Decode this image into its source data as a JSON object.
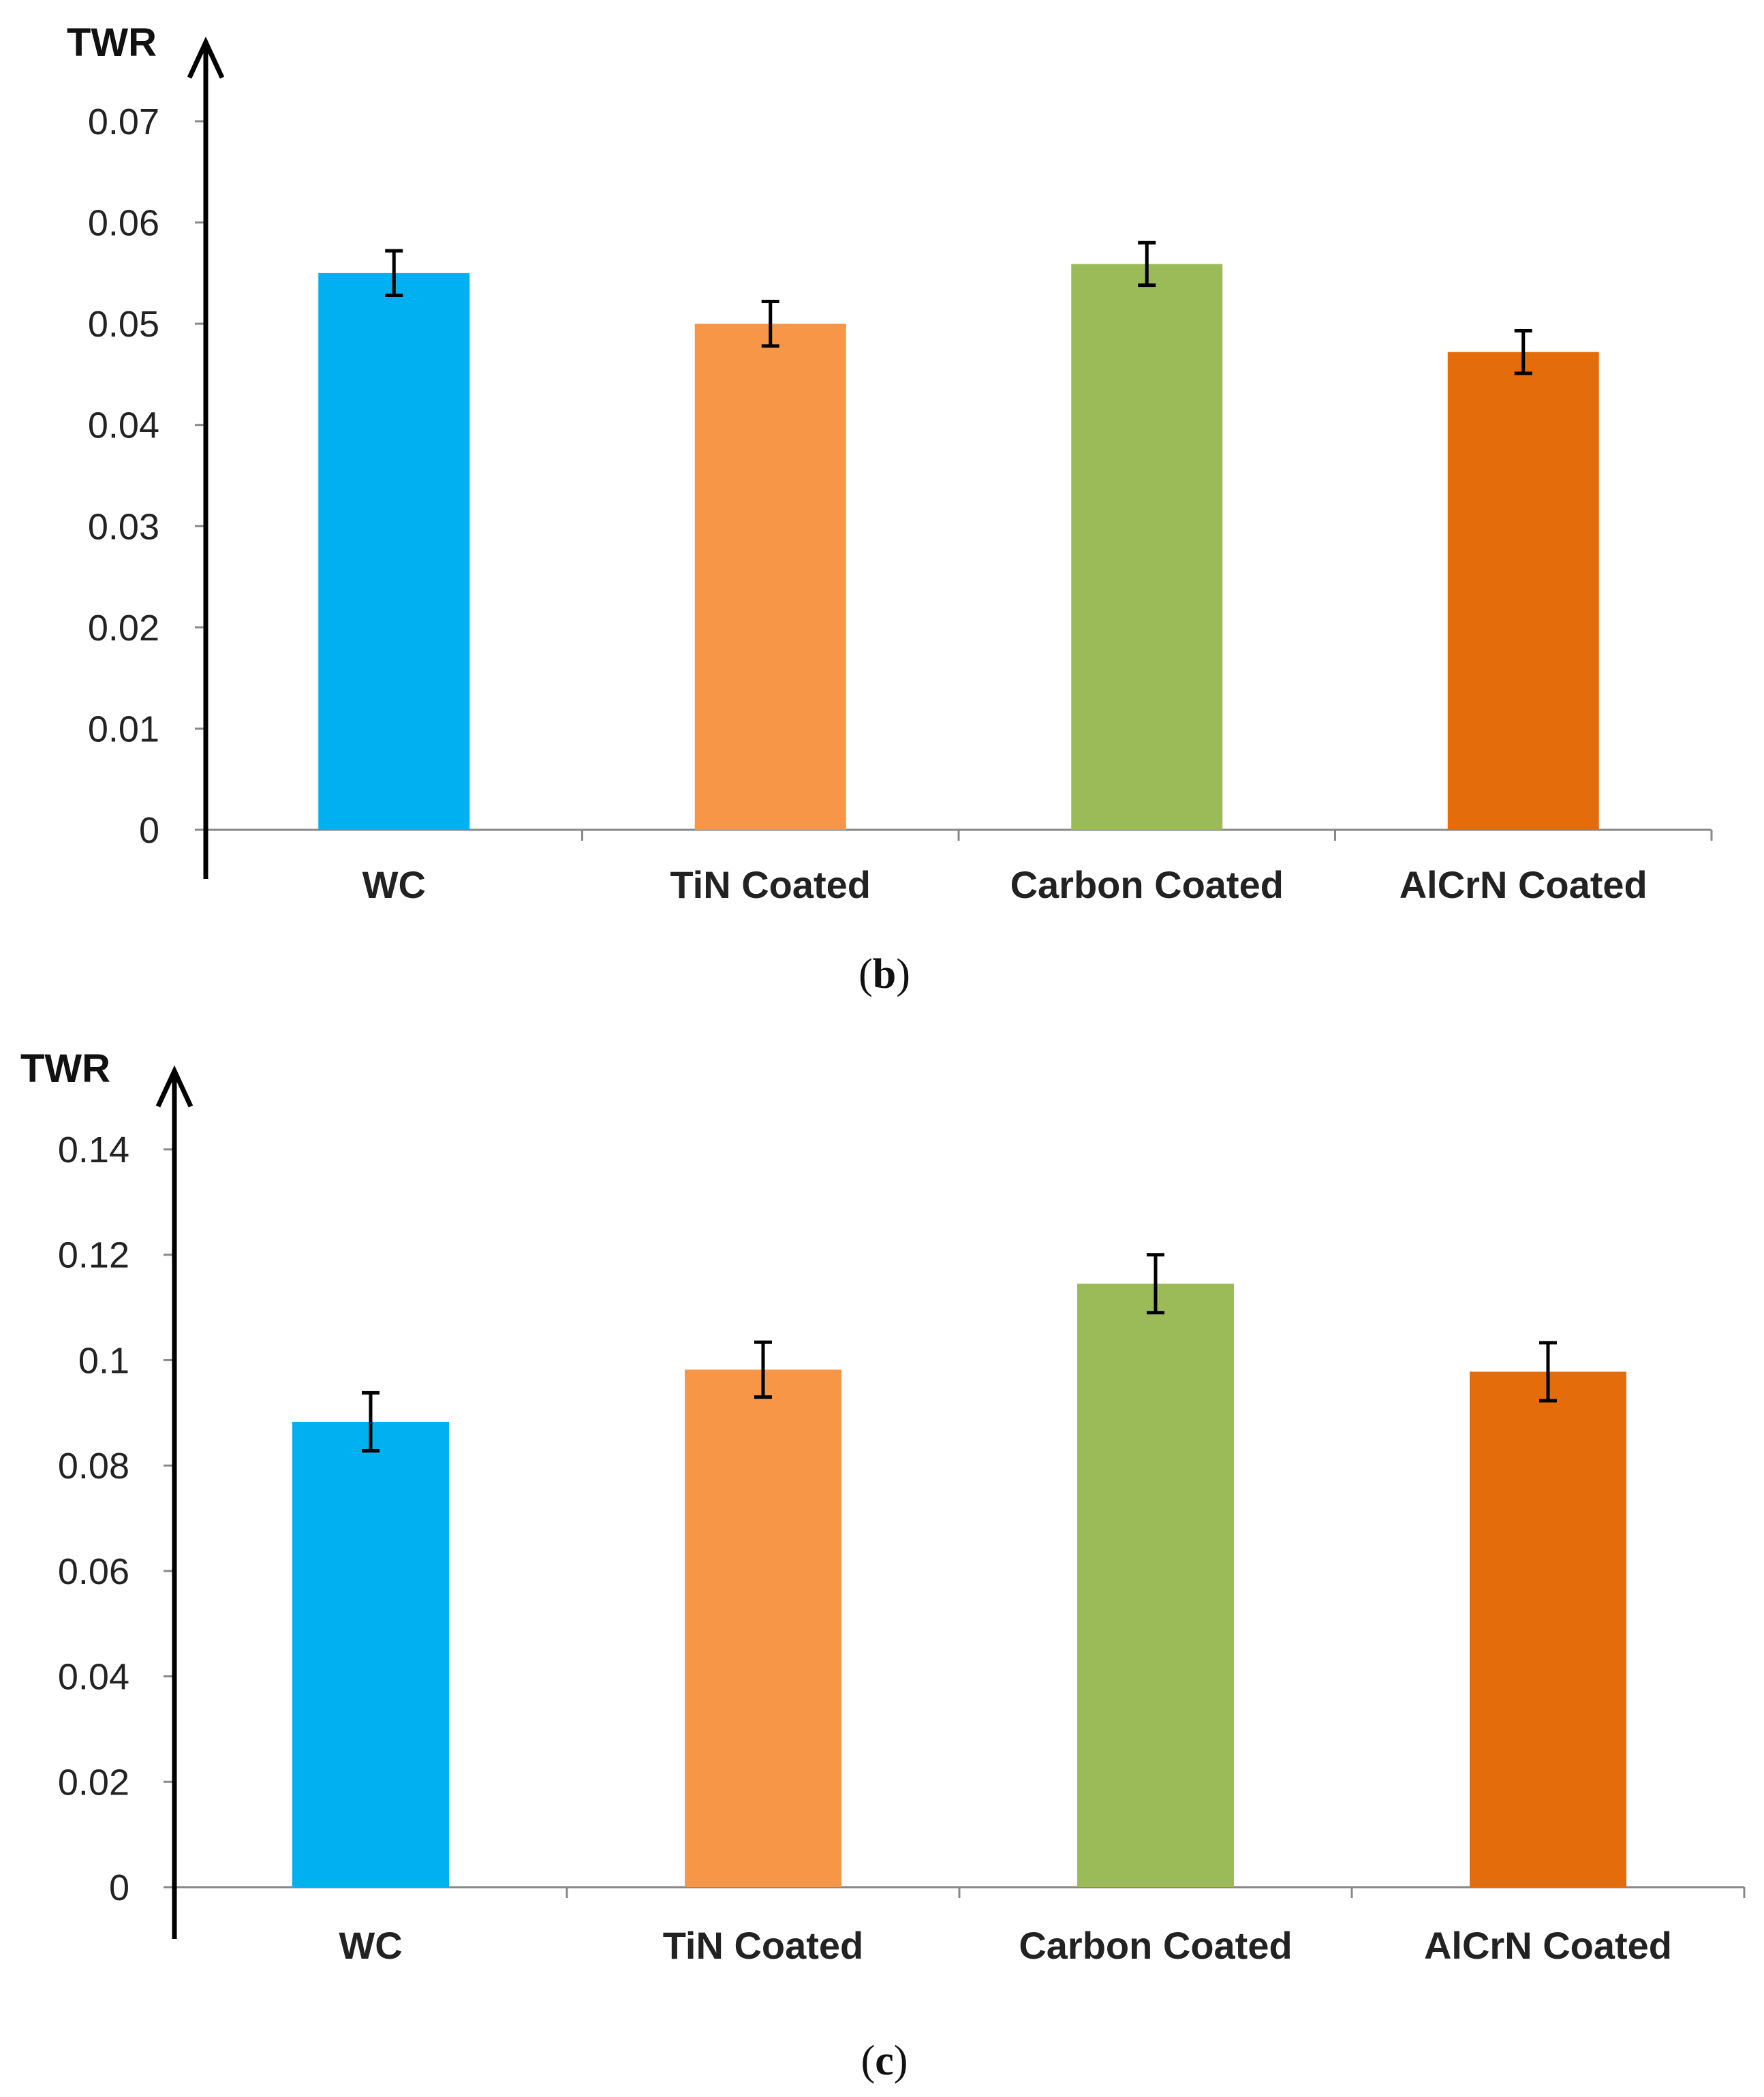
{
  "chart_data": [
    {
      "type": "bar",
      "caption_paren_open": "(",
      "caption_letter": "b",
      "caption_paren_close": ")",
      "ylabel": "TWR",
      "xlabel": "",
      "ylim": [
        0,
        0.07
      ],
      "yticks": [
        "0",
        "0.01",
        "0.02",
        "0.03",
        "0.04",
        "0.05",
        "0.06",
        "0.07"
      ],
      "categories": [
        "WC",
        "TiN Coated",
        "Carbon Coated",
        "AlCrN Coated"
      ],
      "values": [
        0.055,
        0.05,
        0.0559,
        0.0472
      ],
      "error": [
        0.0022,
        0.0022,
        0.0021,
        0.0021
      ],
      "colors": [
        "#00b0f0",
        "#f79646",
        "#9bbb59",
        "#e46c0a"
      ],
      "grid": false
    },
    {
      "type": "bar",
      "caption_paren_open": "(",
      "caption_letter": "c",
      "caption_paren_close": ")",
      "ylabel": "TWR",
      "xlabel": "",
      "ylim": [
        0,
        0.14
      ],
      "yticks": [
        "0",
        "0.02",
        "0.04",
        "0.06",
        "0.08",
        "0.1",
        "0.12",
        "0.14"
      ],
      "categories": [
        "WC",
        "TiN Coated",
        "Carbon Coated",
        "AlCrN Coated"
      ],
      "values": [
        0.0883,
        0.0982,
        0.1145,
        0.0978
      ],
      "error": [
        0.0055,
        0.0052,
        0.0055,
        0.0055
      ],
      "colors": [
        "#00b0f0",
        "#f79646",
        "#9bbb59",
        "#e46c0a"
      ],
      "grid": false
    }
  ]
}
